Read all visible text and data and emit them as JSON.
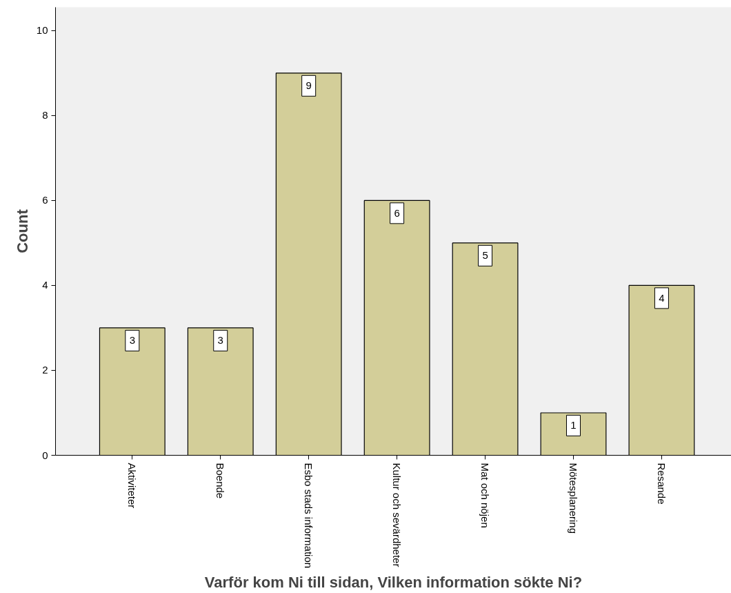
{
  "chart_data": {
    "type": "bar",
    "categories": [
      "Aktiviteter",
      "Boende",
      "Esbo stads information",
      "Kultur och sevärdheter",
      "Mat och nöjen",
      "Mötesplanering",
      "Resande"
    ],
    "values": [
      3,
      3,
      9,
      6,
      5,
      1,
      4
    ],
    "color": "#d3ce99",
    "xlabel": "Varför kom Ni till sidan, Vilken information sökte Ni?",
    "ylabel": "Count",
    "ylim": [
      0,
      10.55
    ],
    "yticks": [
      0,
      2,
      4,
      6,
      8,
      10
    ],
    "grid": false,
    "data_labels": true
  }
}
